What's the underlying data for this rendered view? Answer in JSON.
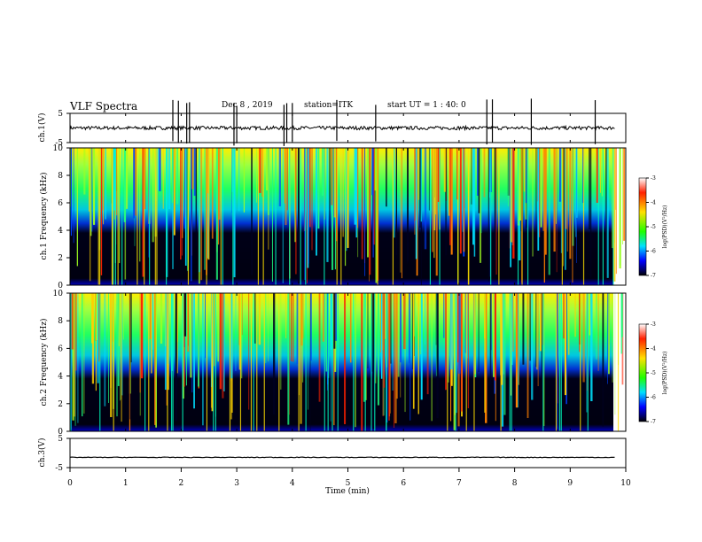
{
  "header": {
    "title": "VLF Spectra",
    "date": "Dec 8 , 2019",
    "station": "station=ITK",
    "start": "start UT = 1 : 40: 0"
  },
  "colorbar": {
    "label": "log(PSD)(V²/Hz)",
    "ticks": [
      -3,
      -4,
      -5,
      -6,
      -7
    ],
    "colormap": [
      "#ffffff",
      "#ff0000",
      "#ffff00",
      "#00ff00",
      "#00ffff",
      "#0000ff",
      "#000040",
      "#000000"
    ]
  },
  "chart_data": [
    {
      "type": "line",
      "panel": "ch1-waveform",
      "ylabel": "ch.1(V)",
      "ylim": [
        -5,
        5
      ],
      "yticks": [
        5,
        -5
      ],
      "xlim": [
        0,
        10
      ],
      "baseline": 0,
      "description_spikes_min": [
        1.85,
        1.95,
        2.1,
        2.15,
        2.95,
        3.0,
        3.85,
        3.9,
        4.0,
        4.8,
        5.5,
        7.5,
        7.6,
        8.3,
        9.45
      ]
    },
    {
      "type": "heatmap",
      "panel": "ch1-spectrogram",
      "ylabel": "ch.1 Frequency (kHz)",
      "ylim": [
        0,
        10
      ],
      "yticks": [
        0,
        2,
        4,
        6,
        8,
        10
      ],
      "xlim": [
        0,
        9.8
      ],
      "zlim": [
        -7,
        -3
      ],
      "zlabel": "log(PSD)(V²/Hz)"
    },
    {
      "type": "heatmap",
      "panel": "ch2-spectrogram",
      "ylabel": "ch.2 Frequency (kHz)",
      "ylim": [
        0,
        10
      ],
      "yticks": [
        0,
        2,
        4,
        6,
        8,
        10
      ],
      "xlim": [
        0,
        9.8
      ],
      "zlim": [
        -7,
        -3
      ],
      "zlabel": "log(PSD)(V²/Hz)"
    },
    {
      "type": "line",
      "panel": "ch3-waveform",
      "ylabel": "ch.3(V)",
      "ylim": [
        -5,
        5
      ],
      "yticks": [
        5,
        -5
      ],
      "xlim": [
        0,
        10
      ],
      "baseline": -1.5,
      "xlabel": "Time (min)",
      "xticks": [
        0,
        1,
        2,
        3,
        4,
        5,
        6,
        7,
        8,
        9,
        10
      ]
    }
  ]
}
